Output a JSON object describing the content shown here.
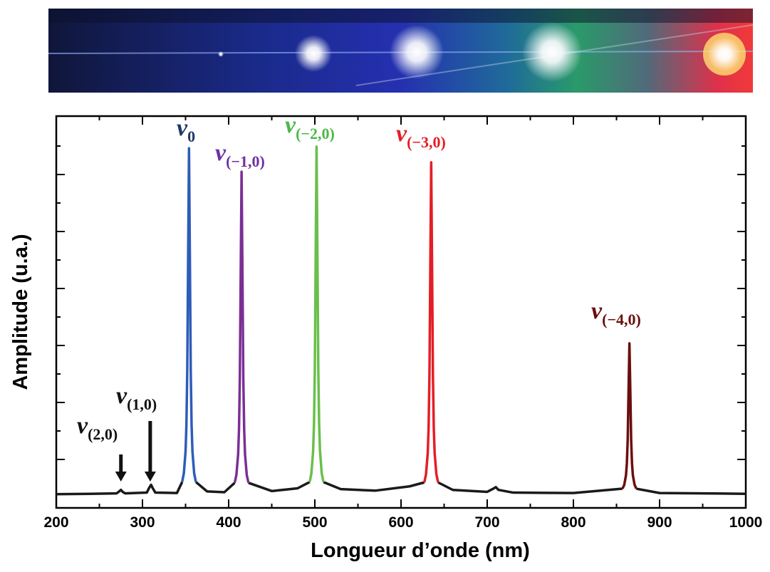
{
  "chart_data": {
    "type": "line",
    "xlabel": "Amplitude (u.a.)",
    "x_axis_label": "Longueur d’onde (nm)",
    "xlim": [
      200,
      1000
    ],
    "xticks": [
      200,
      300,
      400,
      500,
      600,
      700,
      800,
      900,
      1000
    ],
    "ylim": [
      0,
      100
    ],
    "series": [
      {
        "color": "#1a1a1a",
        "x": [
          200,
          240,
          270,
          273,
          275,
          277,
          280,
          305,
          308,
          310,
          312,
          315,
          340,
          346,
          350,
          362,
          375,
          395,
          407,
          415,
          423,
          450,
          480,
          494,
          500,
          510,
          530,
          570,
          610,
          627,
          630,
          643,
          660,
          700,
          707,
          710,
          713,
          730,
          800,
          857,
          860,
          873,
          900,
          1000
        ],
        "values": [
          3.5,
          3.6,
          3.7,
          4.2,
          4.6,
          4.1,
          3.7,
          3.9,
          5.2,
          5.9,
          5.0,
          3.9,
          3.8,
          6.6,
          null,
          6.6,
          4.2,
          4.0,
          6.4,
          null,
          6.4,
          4.3,
          5.0,
          6.6,
          null,
          6.6,
          4.8,
          4.4,
          5.5,
          6.5,
          null,
          6.5,
          4.6,
          4.1,
          4.9,
          5.3,
          4.6,
          3.9,
          3.8,
          4.9,
          null,
          4.9,
          3.8,
          3.6
        ]
      },
      {
        "color": "#2e5cb8",
        "x": [
          346,
          348,
          350,
          351,
          352,
          353,
          354,
          355,
          356,
          357,
          358,
          360,
          362
        ],
        "values": [
          6.6,
          8.8,
          14.4,
          21.2,
          35.4,
          64.5,
          91.8,
          64.5,
          35.4,
          21.2,
          14.4,
          8.8,
          6.6
        ]
      },
      {
        "color": "#7b2f94",
        "x": [
          407,
          409,
          411,
          412,
          413,
          414,
          415,
          416,
          417,
          418,
          419,
          421,
          423
        ],
        "values": [
          6.4,
          8.4,
          13.7,
          20.0,
          33.2,
          60.3,
          85.8,
          60.3,
          33.2,
          20.0,
          13.7,
          8.4,
          6.4
        ]
      },
      {
        "color": "#6abf4b",
        "x": [
          494,
          496,
          498,
          499,
          500,
          501,
          502,
          503,
          504,
          505,
          506,
          508,
          510
        ],
        "values": [
          6.6,
          8.8,
          14.5,
          21.3,
          35.5,
          64.7,
          92.2,
          64.7,
          35.5,
          21.3,
          14.5,
          8.8,
          6.6
        ]
      },
      {
        "color": "#e41e26",
        "x": [
          627,
          629,
          631,
          632,
          633,
          634,
          635,
          636,
          637,
          638,
          639,
          641,
          643
        ],
        "values": [
          6.5,
          8.6,
          14.0,
          20.5,
          34.1,
          62.0,
          88.2,
          62.0,
          34.1,
          20.5,
          14.0,
          8.6,
          6.5
        ]
      },
      {
        "color": "#6b0e0e",
        "x": [
          857,
          859,
          861,
          862,
          863,
          864,
          865,
          866,
          867,
          868,
          869,
          871,
          873
        ],
        "values": [
          4.9,
          5.9,
          8.3,
          11.3,
          17.4,
          30.1,
          42.0,
          30.1,
          17.4,
          11.3,
          8.3,
          5.9,
          4.9
        ]
      }
    ],
    "annotations": [
      {
        "symbol": "ν",
        "subscript": "(2,0)",
        "x": 275,
        "color": "#111111",
        "arrow": true
      },
      {
        "symbol": "ν",
        "subscript": "(1,0)",
        "x": 309,
        "color": "#111111",
        "arrow": true
      },
      {
        "symbol": "ν",
        "subscript": "0",
        "x": 354,
        "color": "#1f3864",
        "arrow": false
      },
      {
        "symbol": "ν",
        "subscript": "(−1,0)",
        "x": 415,
        "color": "#7030a0",
        "arrow": false
      },
      {
        "symbol": "ν",
        "subscript": "(−2,0)",
        "x": 502,
        "color": "#4cb848",
        "arrow": false
      },
      {
        "symbol": "ν",
        "subscript": "(−3,0)",
        "x": 635,
        "color": "#e41e26",
        "arrow": false
      },
      {
        "symbol": "ν",
        "subscript": "(−4,0)",
        "x": 865,
        "color": "#6b0e0e",
        "arrow": false
      }
    ]
  }
}
